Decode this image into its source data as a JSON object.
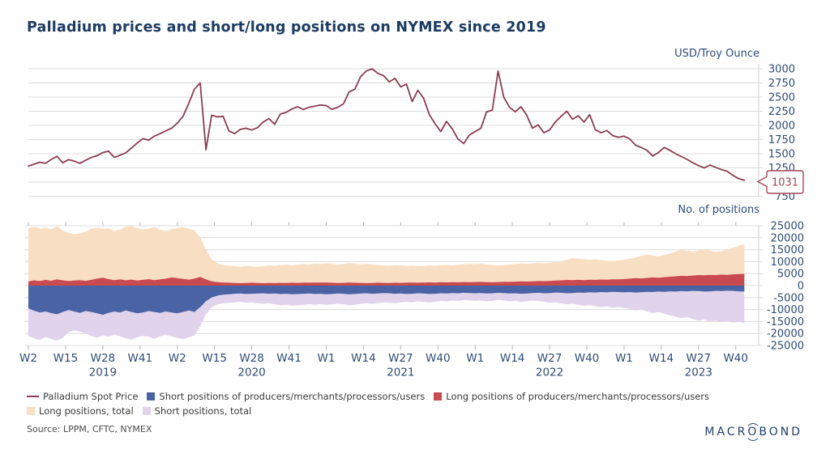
{
  "title": "Palladium prices and short/long positions on NYMEX since 2019",
  "source": "Source: LPPM, CFTC, NYMEX",
  "logo": {
    "prefix": "MACR",
    "o": "O",
    "suffix": "BOND"
  },
  "colors": {
    "title_navy": "#1C3B63",
    "axis_label": "#2E4B79",
    "gridline": "#dcdcdc",
    "tick": "#b4b4b4",
    "callout": "#A4475C"
  },
  "x_axis": {
    "weeks_total": 255,
    "tick_step_weeks": 13,
    "ticks": [
      {
        "label": "W2"
      },
      {
        "label": "W15"
      },
      {
        "label": "W28",
        "year": "2019"
      },
      {
        "label": "W41"
      },
      {
        "label": "W2"
      },
      {
        "label": "W15"
      },
      {
        "label": "W28",
        "year": "2020"
      },
      {
        "label": "W41"
      },
      {
        "label": "W1"
      },
      {
        "label": "W14"
      },
      {
        "label": "W27",
        "year": "2021"
      },
      {
        "label": "W40"
      },
      {
        "label": "W1"
      },
      {
        "label": "W14"
      },
      {
        "label": "W27",
        "year": "2022"
      },
      {
        "label": "W40"
      },
      {
        "label": "W1"
      },
      {
        "label": "W14"
      },
      {
        "label": "W27",
        "year": "2023"
      },
      {
        "label": "W40"
      }
    ]
  },
  "chart_data": [
    {
      "type": "line",
      "title": "Palladium Spot Price",
      "unit": "USD/Troy Ounce",
      "ylim": [
        750,
        3000
      ],
      "y_ticks": [
        3000,
        2750,
        2500,
        2250,
        2000,
        1750,
        1500,
        1250,
        1000,
        750
      ],
      "grid": true,
      "legend_position": "bottom",
      "line_color": "#8C3D51",
      "last_value_callout": "1031",
      "points_week_step": 2,
      "values": [
        1280,
        1315,
        1350,
        1330,
        1400,
        1455,
        1340,
        1395,
        1370,
        1330,
        1385,
        1435,
        1465,
        1520,
        1545,
        1435,
        1475,
        1515,
        1600,
        1690,
        1765,
        1740,
        1810,
        1855,
        1905,
        1950,
        2040,
        2160,
        2390,
        2640,
        2750,
        1570,
        2180,
        2150,
        2160,
        1905,
        1855,
        1930,
        1950,
        1920,
        1960,
        2060,
        2120,
        2020,
        2200,
        2230,
        2290,
        2330,
        2280,
        2320,
        2340,
        2360,
        2350,
        2285,
        2320,
        2380,
        2590,
        2640,
        2860,
        2960,
        3000,
        2920,
        2880,
        2770,
        2830,
        2680,
        2730,
        2420,
        2620,
        2480,
        2190,
        2030,
        1890,
        2070,
        1940,
        1760,
        1680,
        1830,
        1890,
        1950,
        2240,
        2270,
        2960,
        2500,
        2320,
        2240,
        2330,
        2180,
        1950,
        2010,
        1870,
        1920,
        2060,
        2160,
        2250,
        2110,
        2170,
        2060,
        2190,
        1920,
        1870,
        1910,
        1820,
        1790,
        1810,
        1760,
        1650,
        1610,
        1560,
        1460,
        1520,
        1610,
        1560,
        1500,
        1450,
        1400,
        1340,
        1290,
        1250,
        1300,
        1260,
        1220,
        1190,
        1120,
        1060,
        1031
      ]
    },
    {
      "type": "area",
      "unit": "No. of positions",
      "ylim": [
        -25000,
        25000
      ],
      "y_ticks": [
        25000,
        20000,
        15000,
        10000,
        5000,
        0,
        -5000,
        -10000,
        -15000,
        -20000,
        -25000
      ],
      "grid": true,
      "points_week_step": 2,
      "series": [
        {
          "name": "Long positions, total",
          "color": "#F8DFC3",
          "values": [
            24000,
            24500,
            23800,
            24200,
            23500,
            24800,
            23000,
            22000,
            21500,
            21800,
            22500,
            23800,
            24200,
            23600,
            23900,
            22800,
            23400,
            24600,
            24800,
            24000,
            23500,
            23800,
            24500,
            23200,
            22800,
            23500,
            24000,
            24400,
            23800,
            23000,
            20000,
            15000,
            11000,
            9200,
            8600,
            8300,
            8100,
            7900,
            8200,
            8000,
            7800,
            8100,
            8400,
            8200,
            8600,
            8800,
            8500,
            8700,
            9000,
            8800,
            9200,
            9000,
            9300,
            9100,
            8800,
            9000,
            9400,
            9200,
            8900,
            9100,
            8800,
            8600,
            8400,
            8300,
            8500,
            8400,
            8200,
            8300,
            8100,
            8200,
            8400,
            8300,
            8500,
            8600,
            8400,
            8700,
            8900,
            9100,
            9000,
            9200,
            8800,
            8600,
            8400,
            8600,
            8800,
            9000,
            9200,
            9100,
            9300,
            9500,
            9400,
            9600,
            9800,
            10200,
            10800,
            11400,
            11200,
            11000,
            10800,
            11000,
            10600,
            10400,
            10200,
            10500,
            10800,
            11200,
            11800,
            12400,
            13000,
            12600,
            12200,
            12800,
            13400,
            14200,
            15000,
            14600,
            14200,
            14800,
            15200,
            14600,
            14000,
            14400,
            15000,
            15800,
            16600,
            17400
          ]
        },
        {
          "name": "Short positions, total",
          "color": "#E0D3EB",
          "values": [
            -21000,
            -22000,
            -22800,
            -21500,
            -22300,
            -23000,
            -21800,
            -19500,
            -18800,
            -19200,
            -20000,
            -21000,
            -21800,
            -20800,
            -21400,
            -20400,
            -21200,
            -22000,
            -22600,
            -21600,
            -21000,
            -21400,
            -22200,
            -21200,
            -20600,
            -21200,
            -21800,
            -22400,
            -21600,
            -20800,
            -17000,
            -12000,
            -9000,
            -7800,
            -7400,
            -7200,
            -7000,
            -6800,
            -7200,
            -7000,
            -7400,
            -7600,
            -7400,
            -7800,
            -8200,
            -8000,
            -8400,
            -8200,
            -8000,
            -7800,
            -8000,
            -7800,
            -8000,
            -7800,
            -7600,
            -7800,
            -8200,
            -8000,
            -7600,
            -7400,
            -7600,
            -7400,
            -7000,
            -7200,
            -7400,
            -7000,
            -6800,
            -7000,
            -6600,
            -6800,
            -7000,
            -6800,
            -6400,
            -6600,
            -6200,
            -6400,
            -6000,
            -6200,
            -6400,
            -6200,
            -6600,
            -6400,
            -6000,
            -6200,
            -6600,
            -6400,
            -6800,
            -6600,
            -6200,
            -6400,
            -6800,
            -7200,
            -7000,
            -7400,
            -7800,
            -7600,
            -8000,
            -8400,
            -8200,
            -8600,
            -9000,
            -8800,
            -9200,
            -9000,
            -9400,
            -9800,
            -10400,
            -10000,
            -10800,
            -11400,
            -11000,
            -11800,
            -12400,
            -13000,
            -13600,
            -13200,
            -14000,
            -14600,
            -14200,
            -15000,
            -14600,
            -15200,
            -14800,
            -15400,
            -15200,
            -15600
          ]
        },
        {
          "name": "Short positions of producers/merchants/processors/users",
          "color": "#4A63A5",
          "values": [
            -9500,
            -10500,
            -11200,
            -10800,
            -11500,
            -12000,
            -11000,
            -10200,
            -10800,
            -11400,
            -10600,
            -11000,
            -11600,
            -12200,
            -11400,
            -10800,
            -11200,
            -10400,
            -11000,
            -11600,
            -11200,
            -10600,
            -11000,
            -11400,
            -10800,
            -11200,
            -11600,
            -11000,
            -10400,
            -11000,
            -9000,
            -6500,
            -5000,
            -4200,
            -3800,
            -3600,
            -3400,
            -3300,
            -3500,
            -3400,
            -3300,
            -3200,
            -3400,
            -3300,
            -3500,
            -3400,
            -3600,
            -3500,
            -3400,
            -3300,
            -3500,
            -3400,
            -3600,
            -3500,
            -3300,
            -3400,
            -3600,
            -3500,
            -3300,
            -3200,
            -3400,
            -3300,
            -3100,
            -3200,
            -3400,
            -3300,
            -3500,
            -3400,
            -3200,
            -3300,
            -3500,
            -3400,
            -3200,
            -3300,
            -3100,
            -3200,
            -3000,
            -3100,
            -3200,
            -3100,
            -3300,
            -3200,
            -3000,
            -3100,
            -3300,
            -3200,
            -3400,
            -3300,
            -3100,
            -3000,
            -3200,
            -3100,
            -2900,
            -3000,
            -3200,
            -3100,
            -2900,
            -3000,
            -2800,
            -2900,
            -2700,
            -2800,
            -2600,
            -2700,
            -2800,
            -2700,
            -2900,
            -2800,
            -2600,
            -2700,
            -2500,
            -2600,
            -2400,
            -2500,
            -2300,
            -2400,
            -2200,
            -2300,
            -2500,
            -2400,
            -2200,
            -2300,
            -2100,
            -2200,
            -2400,
            -2500
          ]
        },
        {
          "name": "Long positions of producers/merchants/processors/users",
          "color": "#CA4A51",
          "values": [
            1800,
            2200,
            1900,
            2400,
            2000,
            2600,
            2200,
            1900,
            2100,
            2300,
            2000,
            2400,
            2900,
            3300,
            2700,
            2300,
            2600,
            2200,
            2500,
            2100,
            2400,
            2700,
            2300,
            2600,
            2900,
            3400,
            3100,
            2800,
            2500,
            2900,
            3600,
            2600,
            1800,
            1500,
            1300,
            1200,
            1100,
            1000,
            1100,
            1200,
            1100,
            1000,
            1100,
            1050,
            1150,
            1100,
            1200,
            1150,
            1250,
            1200,
            1300,
            1250,
            1300,
            1200,
            1100,
            1150,
            1250,
            1200,
            1100,
            1050,
            1100,
            1200,
            1150,
            1100,
            1200,
            1150,
            1250,
            1300,
            1200,
            1250,
            1350,
            1300,
            1400,
            1350,
            1450,
            1400,
            1500,
            1450,
            1500,
            1550,
            1450,
            1400,
            1500,
            1600,
            1550,
            1650,
            1750,
            1700,
            1800,
            1900,
            1850,
            1950,
            2100,
            2200,
            2350,
            2250,
            2400,
            2300,
            2450,
            2400,
            2550,
            2500,
            2650,
            2600,
            2750,
            2900,
            3100,
            3000,
            3200,
            3400,
            3300,
            3500,
            3700,
            3900,
            4100,
            4000,
            4200,
            4400,
            4300,
            4500,
            4400,
            4600,
            4500,
            4700,
            4800,
            4900
          ]
        }
      ]
    }
  ]
}
